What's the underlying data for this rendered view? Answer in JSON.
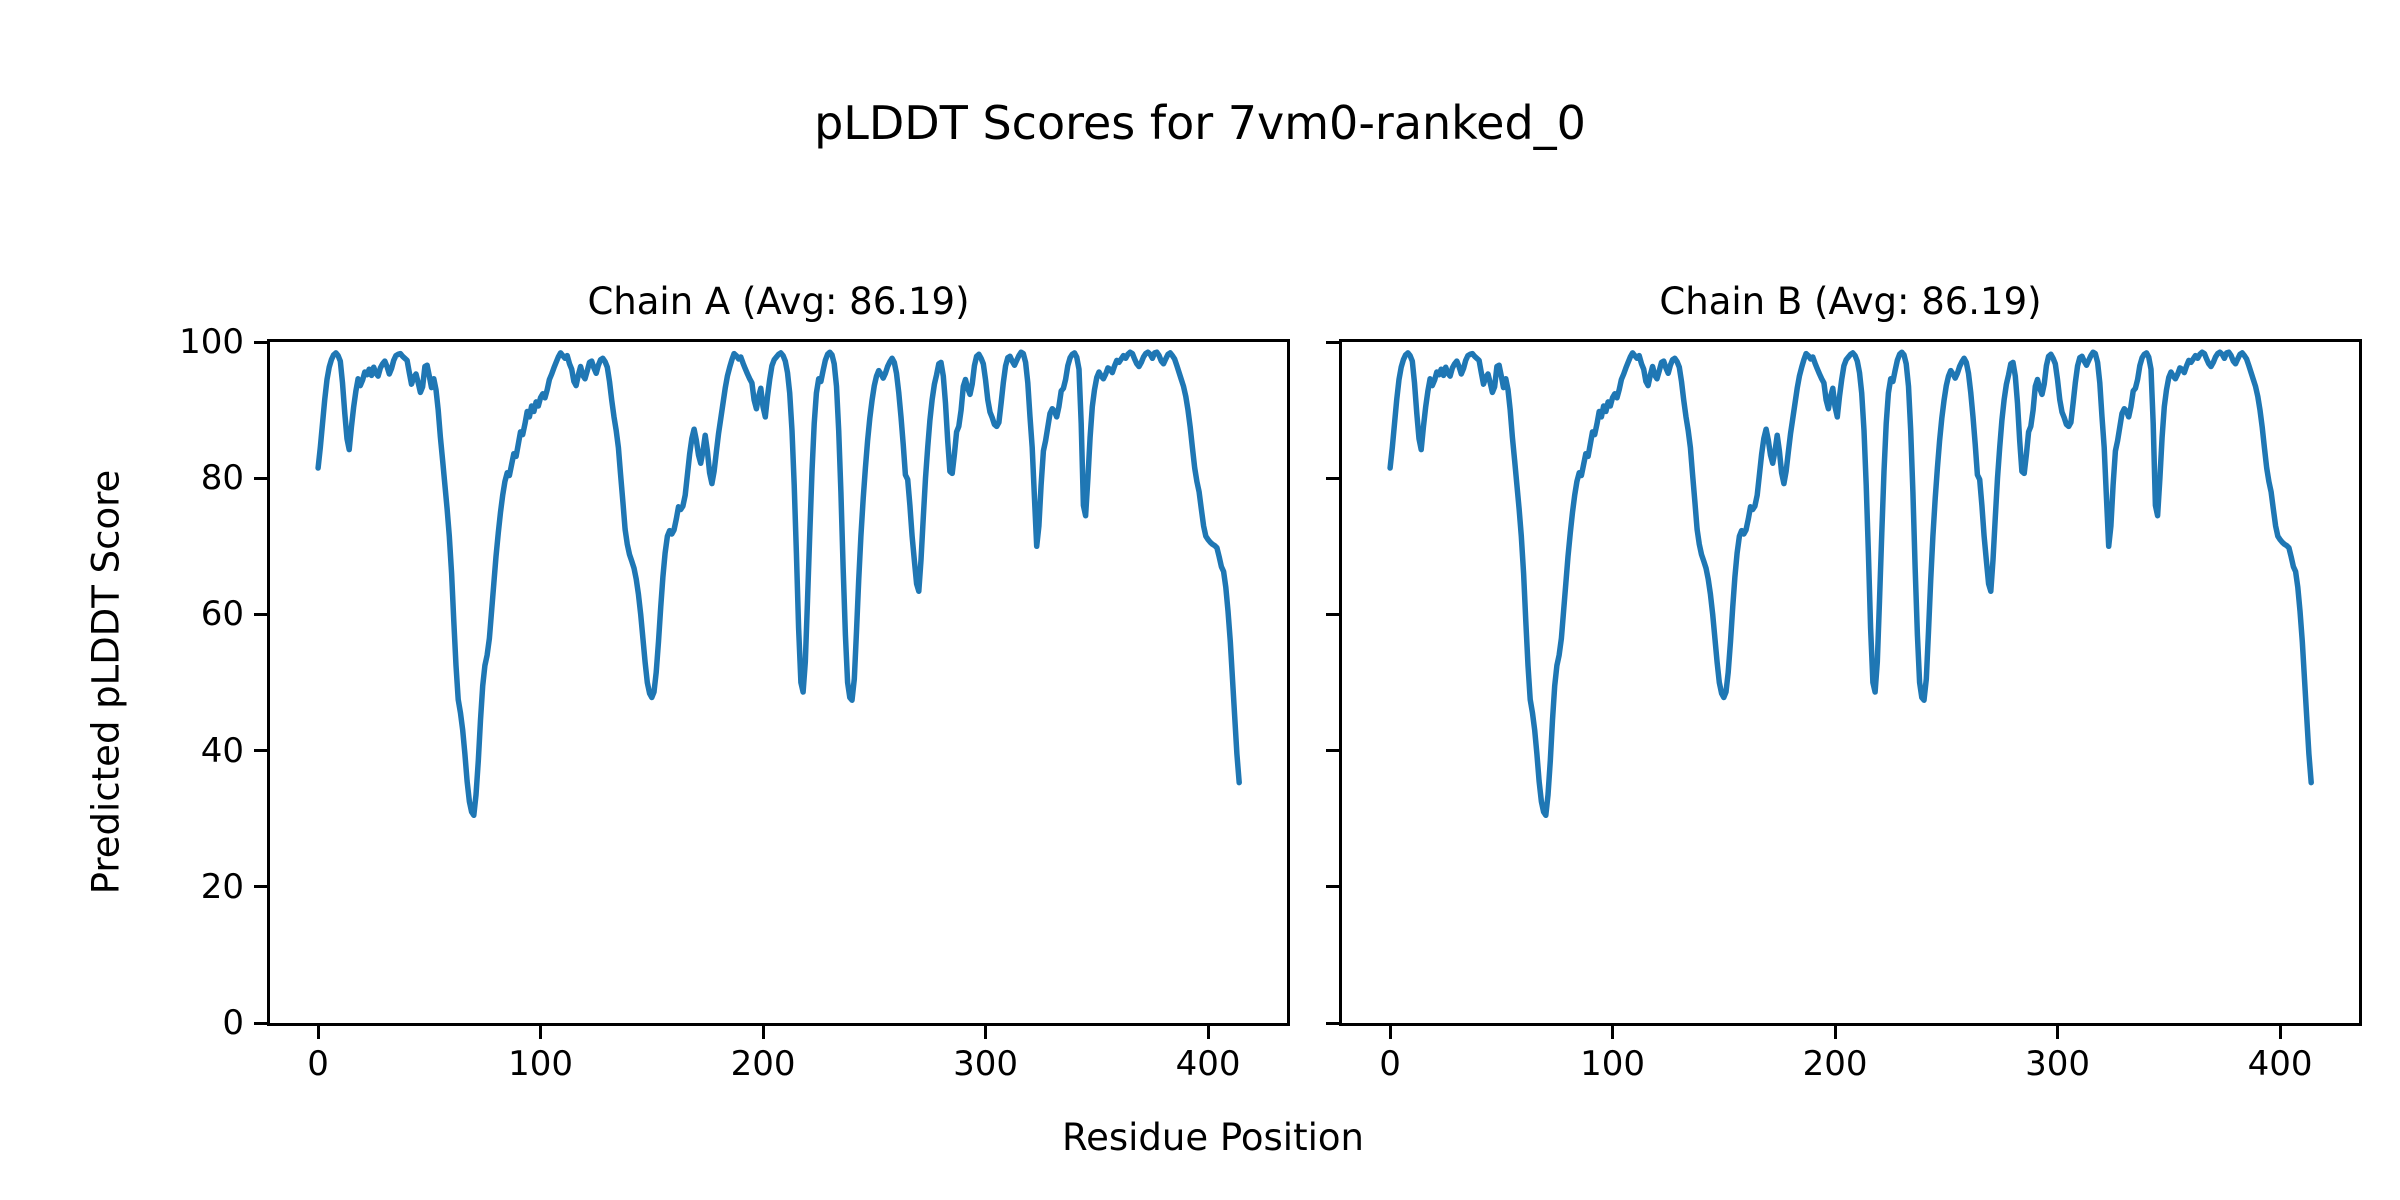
{
  "figure": {
    "title": "pLDDT Scores for 7vm0-ranked_0",
    "background": "#ffffff",
    "text_color": "#000000"
  },
  "chart_data": {
    "type": "line",
    "title": "pLDDT Scores for 7vm0-ranked_0",
    "xlabel": "Residue Position",
    "ylabel": "Predicted pLDDT Score",
    "legend": "none",
    "grid": false,
    "line_color": "#1f77b4",
    "xlim": [
      -21.6,
      435.5
    ],
    "ylim": [
      0,
      100
    ],
    "xticks": [
      0,
      100,
      200,
      300,
      400
    ],
    "yticks": [
      0,
      20,
      40,
      60,
      80,
      100
    ],
    "x_start": 0,
    "x_step": 1,
    "subplots": [
      {
        "title": "Chain A (Avg: 86.19)",
        "chain": "A",
        "avg": 86.19
      },
      {
        "title": "Chain B (Avg: 86.19)",
        "chain": "B",
        "avg": 86.19
      }
    ],
    "note": "Chain A and Chain B show identical pLDDT profiles; both subplots are drawn from the shared values array below (one value per residue, residue 0-414).",
    "values": [
      81.5,
      84.5,
      88,
      91.5,
      94.5,
      96.3,
      97.4,
      98.1,
      98.4,
      98,
      97.2,
      94,
      89.5,
      85.8,
      84.2,
      87.5,
      90.5,
      92.8,
      94.6,
      93.6,
      94.4,
      95.6,
      95.2,
      96,
      95.1,
      96.3,
      95.4,
      95,
      96.2,
      96.8,
      97.2,
      96.4,
      95.3,
      96.1,
      97.3,
      98,
      98.2,
      98.3,
      97.9,
      97.6,
      97.3,
      95.5,
      93.8,
      94.8,
      95.3,
      94,
      92.6,
      93.4,
      96.4,
      96.6,
      95,
      93.3,
      94.6,
      93,
      90,
      86,
      82.5,
      79,
      75.5,
      71.5,
      66,
      59,
      52.5,
      47.5,
      45.5,
      43,
      39.5,
      35.5,
      32.5,
      31,
      30.5,
      33.5,
      38.5,
      44.5,
      49.5,
      52.5,
      54,
      56.5,
      60.5,
      64.5,
      68.5,
      72,
      75,
      77.5,
      79.5,
      80.8,
      80.4,
      82,
      83.6,
      83.2,
      85,
      86.8,
      86.4,
      88,
      89.8,
      89,
      90.6,
      89.8,
      91.2,
      90.6,
      91.8,
      92.4,
      91.8,
      93,
      94.5,
      95.3,
      96.2,
      97,
      97.8,
      98.4,
      98,
      97.6,
      98,
      96.8,
      96,
      94.2,
      93.6,
      95.2,
      96.4,
      95.1,
      94.6,
      95.8,
      97,
      97.2,
      96.2,
      95.4,
      96.6,
      97.4,
      97.6,
      97.1,
      96.3,
      94.2,
      91.5,
      89,
      87,
      84.5,
      80.5,
      76.5,
      72.5,
      70.3,
      68.8,
      67.8,
      66.8,
      65.2,
      63,
      60,
      56.5,
      53,
      50,
      48.4,
      47.8,
      48.6,
      51.5,
      56,
      61,
      65.5,
      69,
      71.5,
      72.3,
      71.8,
      72.4,
      74,
      75.8,
      75.4,
      75.9,
      77.5,
      80.5,
      83.5,
      85.8,
      87.2,
      85.6,
      83.4,
      82.2,
      84,
      86.3,
      84,
      80.8,
      79.2,
      81,
      83.8,
      86.5,
      88.8,
      91,
      93.2,
      95,
      96.3,
      97.4,
      98.3,
      98,
      97.5,
      97.8,
      96.9,
      96.1,
      95.3,
      94.6,
      94,
      91.5,
      90.2,
      92,
      93.2,
      90.5,
      89,
      92,
      94.5,
      96.5,
      97.4,
      97.8,
      98.2,
      98.4,
      98,
      97.2,
      95.5,
      92.5,
      87,
      79,
      69,
      58,
      50,
      48.6,
      53,
      62,
      72,
      81,
      88,
      92.5,
      94.6,
      94.2,
      95.8,
      97.3,
      98.2,
      98.5,
      98.1,
      96.8,
      93.5,
      87,
      78,
      67,
      57,
      50,
      47.8,
      47.4,
      50.5,
      57.5,
      65,
      71.5,
      77,
      81.5,
      85.5,
      88.8,
      91.5,
      93.6,
      95,
      95.8,
      95.3,
      94.7,
      95.4,
      96.4,
      97.1,
      97.6,
      97,
      95.4,
      92.5,
      89,
      85,
      80.5,
      79.8,
      76,
      71.5,
      68,
      64.5,
      63.4,
      68,
      74,
      80,
      84.5,
      88.5,
      91.5,
      93.8,
      95.2,
      96.8,
      97,
      95,
      91,
      85.5,
      81,
      80.7,
      83.5,
      86.8,
      87.6,
      90,
      93.5,
      94.5,
      93.2,
      92.3,
      93.8,
      96.5,
      97.9,
      98.2,
      97.6,
      96.8,
      94.5,
      91.5,
      89.7,
      88.9,
      87.9,
      87.6,
      88.2,
      91,
      94,
      96.5,
      97.7,
      97.9,
      97.2,
      96.6,
      97.3,
      98,
      98.5,
      98.3,
      97,
      94,
      89,
      84.5,
      77,
      70,
      73,
      79,
      84,
      85.5,
      87.5,
      89.5,
      90.2,
      89.8,
      89,
      90.5,
      92.8,
      93.2,
      94.5,
      96.5,
      97.7,
      98.2,
      98.4,
      97.8,
      96,
      88,
      76,
      74.5,
      80,
      86,
      90.5,
      93,
      94.8,
      95.6,
      95,
      94.6,
      95.3,
      96.2,
      96,
      95.5,
      96.5,
      97.3,
      97,
      97.5,
      98,
      97.6,
      98.2,
      98.5,
      98.3,
      97.5,
      96.8,
      96.4,
      97,
      97.8,
      98.3,
      98.5,
      98.2,
      97.6,
      98.4,
      98.5,
      98,
      97.2,
      96.8,
      97.5,
      98.2,
      98.4,
      98,
      97.5,
      96.5,
      95.5,
      94.5,
      93.5,
      92,
      90,
      87.5,
      84.5,
      81.5,
      79.5,
      78,
      75.5,
      73,
      71.5,
      71,
      70.6,
      70.3,
      70.1,
      69.8,
      68.5,
      67,
      66.3,
      64,
      60.5,
      56,
      50.5,
      45,
      39.5,
      35.3
    ]
  }
}
